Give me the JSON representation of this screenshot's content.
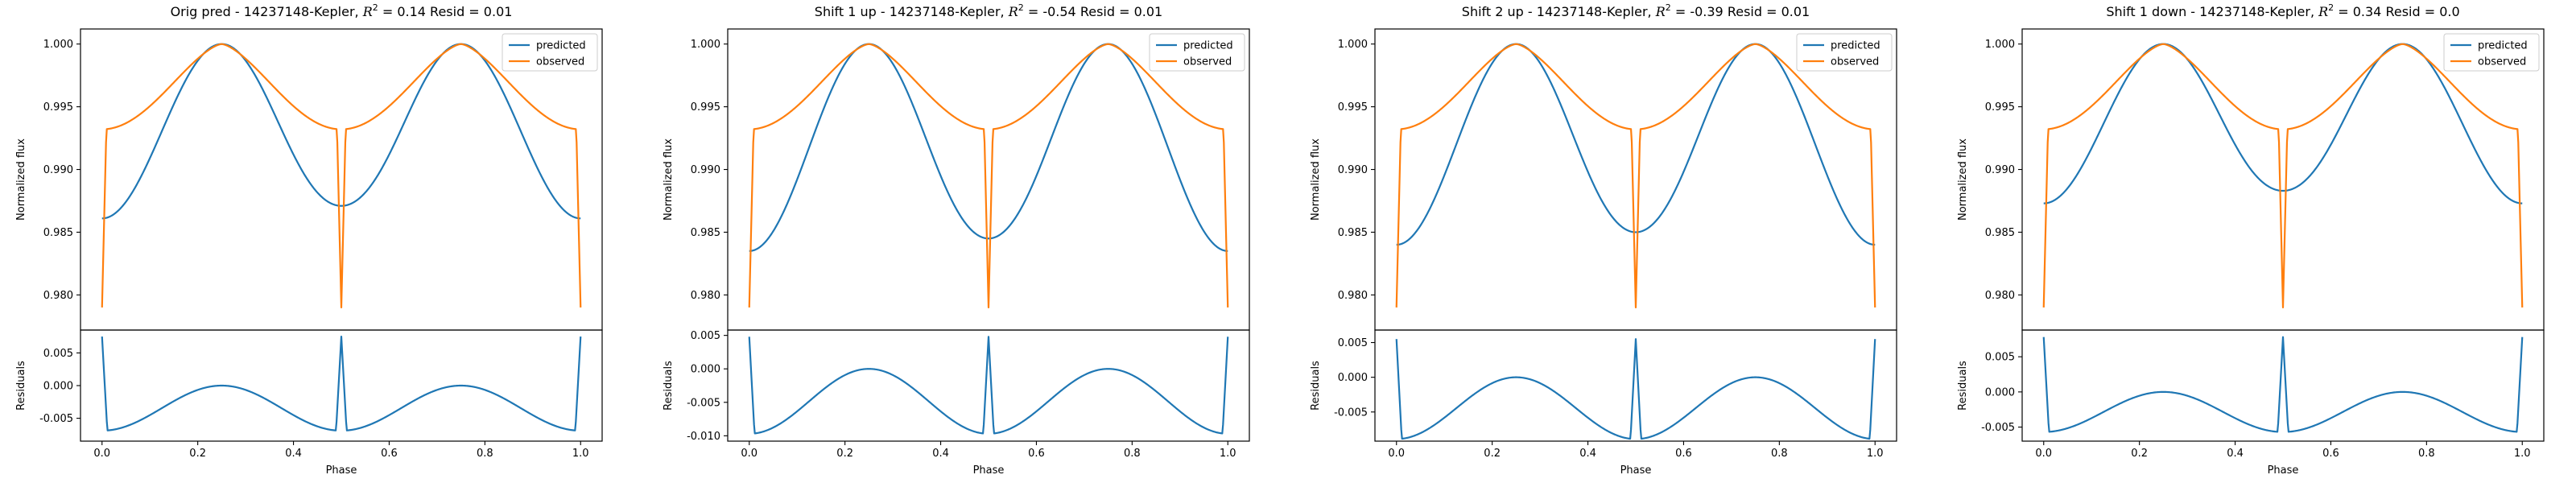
{
  "figure": {
    "colors": {
      "predicted": "#1f77b4",
      "observed": "#ff7f0e",
      "axes": "#000000",
      "background": "#ffffff"
    }
  },
  "chart_data": [
    {
      "type": "line",
      "title_prefix": "Orig pred - 14237148-Kepler, ",
      "r2": "0.14",
      "resid_text": " Resid = 0.01",
      "xlabel": "Phase",
      "xticks": [
        "0.0",
        "0.2",
        "0.4",
        "0.6",
        "0.8",
        "1.0"
      ],
      "top": {
        "ylabel": "Normalized flux",
        "ylim": [
          0.9772,
          1.0012
        ],
        "yticks": [
          "0.980",
          "0.985",
          "0.990",
          "0.995",
          "1.000"
        ],
        "legend": {
          "position": "top-right",
          "entries": [
            "predicted",
            "observed"
          ]
        },
        "series": [
          {
            "name": "predicted",
            "color": "#1f77b4",
            "shape": "predicted",
            "min": 0.9861,
            "mid_min": 0.9871,
            "max": 1.0
          },
          {
            "name": "observed",
            "color": "#ff7f0e",
            "shape": "observed",
            "shoulder": 0.9932,
            "dip": 0.979,
            "max": 1.0
          }
        ]
      },
      "bottom": {
        "ylabel": "Residuals",
        "ylim": [
          -0.0085,
          0.0085
        ],
        "yticks": [
          "0.005",
          "0.000",
          "-0.005"
        ],
        "series": [
          {
            "color": "#1f77b4",
            "shape": "residual",
            "spike": 0.0075,
            "min": -0.0069,
            "max": 0.0
          }
        ]
      }
    },
    {
      "type": "line",
      "title_prefix": "Shift 1 up - 14237148-Kepler, ",
      "r2": "-0.54",
      "resid_text": " Resid = 0.01",
      "xlabel": "Phase",
      "xticks": [
        "0.0",
        "0.2",
        "0.4",
        "0.6",
        "0.8",
        "1.0"
      ],
      "top": {
        "ylabel": "Normalized flux",
        "ylim": [
          0.9772,
          1.0012
        ],
        "yticks": [
          "0.980",
          "0.985",
          "0.990",
          "0.995",
          "1.000"
        ],
        "legend": {
          "position": "top-right",
          "entries": [
            "predicted",
            "observed"
          ]
        },
        "series": [
          {
            "name": "predicted",
            "color": "#1f77b4",
            "shape": "predicted",
            "min": 0.9835,
            "mid_min": 0.9845,
            "max": 1.0
          },
          {
            "name": "observed",
            "color": "#ff7f0e",
            "shape": "observed",
            "shoulder": 0.9932,
            "dip": 0.979,
            "max": 1.0
          }
        ]
      },
      "bottom": {
        "ylabel": "Residuals",
        "ylim": [
          -0.0108,
          0.0058
        ],
        "yticks": [
          "0.005",
          "0.000",
          "-0.005",
          "-0.010"
        ],
        "series": [
          {
            "color": "#1f77b4",
            "shape": "residual",
            "spike": 0.0048,
            "min": -0.0097,
            "max": 0.0
          }
        ]
      }
    },
    {
      "type": "line",
      "title_prefix": "Shift 2 up - 14237148-Kepler, ",
      "r2": "-0.39",
      "resid_text": " Resid = 0.01",
      "xlabel": "Phase",
      "xticks": [
        "0.0",
        "0.2",
        "0.4",
        "0.6",
        "0.8",
        "1.0"
      ],
      "top": {
        "ylabel": "Normalized flux",
        "ylim": [
          0.9772,
          1.0012
        ],
        "yticks": [
          "0.980",
          "0.985",
          "0.990",
          "0.995",
          "1.000"
        ],
        "legend": {
          "position": "top-right",
          "entries": [
            "predicted",
            "observed"
          ]
        },
        "series": [
          {
            "name": "predicted",
            "color": "#1f77b4",
            "shape": "predicted",
            "min": 0.984,
            "mid_min": 0.985,
            "max": 1.0
          },
          {
            "name": "observed",
            "color": "#ff7f0e",
            "shape": "observed",
            "shoulder": 0.9932,
            "dip": 0.979,
            "max": 1.0
          }
        ]
      },
      "bottom": {
        "ylabel": "Residuals",
        "ylim": [
          -0.0092,
          0.0068
        ],
        "yticks": [
          "0.005",
          "0.000",
          "-0.005"
        ],
        "series": [
          {
            "color": "#1f77b4",
            "shape": "residual",
            "spike": 0.0055,
            "min": -0.0089,
            "max": 0.0
          }
        ]
      }
    },
    {
      "type": "line",
      "title_prefix": "Shift 1 down - 14237148-Kepler, ",
      "r2": "0.34",
      "resid_text": " Resid = 0.0",
      "xlabel": "Phase",
      "xticks": [
        "0.0",
        "0.2",
        "0.4",
        "0.6",
        "0.8",
        "1.0"
      ],
      "top": {
        "ylabel": "Normalized flux",
        "ylim": [
          0.9772,
          1.0012
        ],
        "yticks": [
          "0.980",
          "0.985",
          "0.990",
          "0.995",
          "1.000"
        ],
        "legend": {
          "position": "top-right",
          "entries": [
            "predicted",
            "observed"
          ]
        },
        "series": [
          {
            "name": "predicted",
            "color": "#1f77b4",
            "shape": "predicted",
            "min": 0.9873,
            "mid_min": 0.9883,
            "max": 1.0
          },
          {
            "name": "observed",
            "color": "#ff7f0e",
            "shape": "observed",
            "shoulder": 0.9932,
            "dip": 0.979,
            "max": 1.0
          }
        ]
      },
      "bottom": {
        "ylabel": "Residuals",
        "ylim": [
          -0.007,
          0.0088
        ],
        "yticks": [
          "0.005",
          "0.000",
          "-0.005"
        ],
        "series": [
          {
            "color": "#1f77b4",
            "shape": "residual",
            "spike": 0.0078,
            "min": -0.0057,
            "max": 0.0
          }
        ]
      }
    }
  ]
}
